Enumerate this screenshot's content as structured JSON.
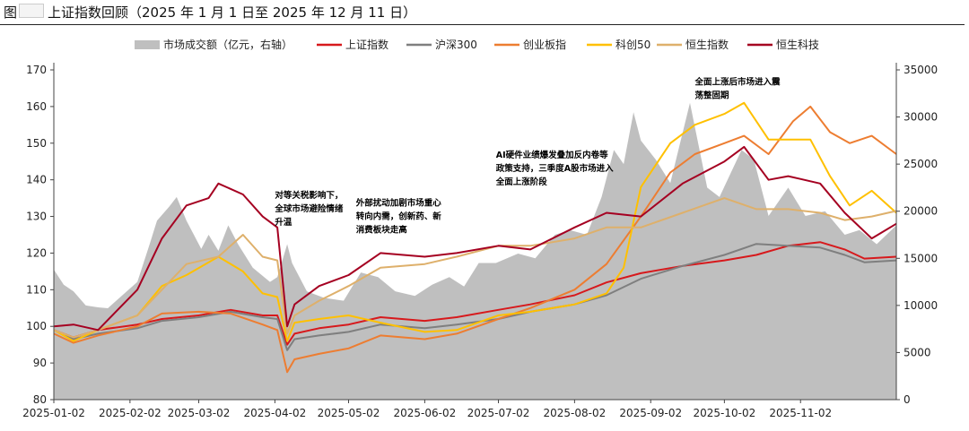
{
  "header": {
    "figure_prefix": "图",
    "title_text": "上证指数回顾（2025 年 1 月 1 日至 2025 年 12 月 11 日）"
  },
  "chart_data": {
    "type": "line",
    "title": "上证指数回顾（2025 年 1 月 1 日至 2025 年 12 月 11 日）",
    "xlabel": "",
    "ylabel": "",
    "x_ticks": [
      "2025-01-02",
      "2025-02-02",
      "2025-03-02",
      "2025-04-02",
      "2025-05-02",
      "2025-06-02",
      "2025-07-02",
      "2025-08-02",
      "2025-09-02",
      "2025-10-02",
      "2025-11-02"
    ],
    "x_range": [
      "2025-01-02",
      "2025-12-11"
    ],
    "ylim_left": [
      80,
      170
    ],
    "yticks_left": [
      80,
      90,
      100,
      110,
      120,
      130,
      140,
      150,
      160,
      170
    ],
    "ylim_right": [
      0,
      35000
    ],
    "yticks_right": [
      0,
      5000,
      10000,
      15000,
      20000,
      25000,
      30000,
      35000
    ],
    "legend_position": "top",
    "grid": false,
    "series": [
      {
        "name": "市场成交额（亿元，右轴）",
        "kind": "area",
        "axis": "right",
        "color": "#bfbfbf",
        "points": [
          [
            "2025-01-02",
            13800
          ],
          [
            "2025-01-06",
            12200
          ],
          [
            "2025-01-10",
            11500
          ],
          [
            "2025-01-15",
            10000
          ],
          [
            "2025-01-20",
            9800
          ],
          [
            "2025-01-24",
            9700
          ],
          [
            "2025-02-05",
            12500
          ],
          [
            "2025-02-10",
            16500
          ],
          [
            "2025-02-13",
            19000
          ],
          [
            "2025-02-18",
            20500
          ],
          [
            "2025-02-21",
            21500
          ],
          [
            "2025-02-25",
            19000
          ],
          [
            "2025-03-03",
            16000
          ],
          [
            "2025-03-06",
            17500
          ],
          [
            "2025-03-10",
            15800
          ],
          [
            "2025-03-14",
            18500
          ],
          [
            "2025-03-18",
            16500
          ],
          [
            "2025-03-24",
            14000
          ],
          [
            "2025-03-31",
            12500
          ],
          [
            "2025-04-03",
            13000
          ],
          [
            "2025-04-07",
            16500
          ],
          [
            "2025-04-09",
            14500
          ],
          [
            "2025-04-15",
            11500
          ],
          [
            "2025-04-22",
            10800
          ],
          [
            "2025-04-30",
            10500
          ],
          [
            "2025-05-07",
            13500
          ],
          [
            "2025-05-14",
            13000
          ],
          [
            "2025-05-21",
            11500
          ],
          [
            "2025-05-29",
            11000
          ],
          [
            "2025-06-05",
            12200
          ],
          [
            "2025-06-12",
            13000
          ],
          [
            "2025-06-18",
            12000
          ],
          [
            "2025-06-24",
            14500
          ],
          [
            "2025-07-01",
            14500
          ],
          [
            "2025-07-10",
            15500
          ],
          [
            "2025-07-17",
            15000
          ],
          [
            "2025-07-25",
            17500
          ],
          [
            "2025-07-31",
            18000
          ],
          [
            "2025-08-07",
            17500
          ],
          [
            "2025-08-13",
            21500
          ],
          [
            "2025-08-18",
            26500
          ],
          [
            "2025-08-22",
            25000
          ],
          [
            "2025-08-26",
            30500
          ],
          [
            "2025-08-29",
            27500
          ],
          [
            "2025-09-04",
            25500
          ],
          [
            "2025-09-10",
            23000
          ],
          [
            "2025-09-18",
            31500
          ],
          [
            "2025-09-25",
            22500
          ],
          [
            "2025-09-30",
            21500
          ],
          [
            "2025-10-09",
            26500
          ],
          [
            "2025-10-14",
            25500
          ],
          [
            "2025-10-20",
            19500
          ],
          [
            "2025-10-28",
            22500
          ],
          [
            "2025-11-04",
            19500
          ],
          [
            "2025-11-12",
            20000
          ],
          [
            "2025-11-20",
            17500
          ],
          [
            "2025-11-26",
            18000
          ],
          [
            "2025-12-03",
            16500
          ],
          [
            "2025-12-11",
            18500
          ]
        ]
      },
      {
        "name": "上证指数",
        "axis": "left",
        "color": "#d7191c",
        "points": [
          [
            "2025-01-02",
            99
          ],
          [
            "2025-01-10",
            97
          ],
          [
            "2025-01-20",
            99
          ],
          [
            "2025-02-05",
            100.5
          ],
          [
            "2025-02-15",
            102
          ],
          [
            "2025-03-02",
            103
          ],
          [
            "2025-03-15",
            104.5
          ],
          [
            "2025-03-28",
            103
          ],
          [
            "2025-04-03",
            103
          ],
          [
            "2025-04-07",
            95
          ],
          [
            "2025-04-10",
            98
          ],
          [
            "2025-04-20",
            99.5
          ],
          [
            "2025-05-02",
            100.5
          ],
          [
            "2025-05-15",
            102.5
          ],
          [
            "2025-06-02",
            101.5
          ],
          [
            "2025-06-15",
            102.5
          ],
          [
            "2025-07-02",
            104.5
          ],
          [
            "2025-07-15",
            106
          ],
          [
            "2025-08-02",
            108.5
          ],
          [
            "2025-08-15",
            112
          ],
          [
            "2025-08-29",
            114.5
          ],
          [
            "2025-09-15",
            116.5
          ],
          [
            "2025-10-02",
            118
          ],
          [
            "2025-10-15",
            119.5
          ],
          [
            "2025-10-28",
            122
          ],
          [
            "2025-11-10",
            123
          ],
          [
            "2025-11-20",
            121
          ],
          [
            "2025-11-28",
            118.5
          ],
          [
            "2025-12-11",
            119
          ]
        ]
      },
      {
        "name": "沪深300",
        "axis": "left",
        "color": "#7f7f7f",
        "points": [
          [
            "2025-01-02",
            99
          ],
          [
            "2025-01-10",
            96.5
          ],
          [
            "2025-01-20",
            98
          ],
          [
            "2025-02-05",
            99.5
          ],
          [
            "2025-02-15",
            101.5
          ],
          [
            "2025-03-02",
            102.5
          ],
          [
            "2025-03-15",
            104
          ],
          [
            "2025-03-28",
            102.5
          ],
          [
            "2025-04-03",
            102
          ],
          [
            "2025-04-07",
            93.5
          ],
          [
            "2025-04-10",
            96.5
          ],
          [
            "2025-04-20",
            97.5
          ],
          [
            "2025-05-02",
            98.5
          ],
          [
            "2025-05-15",
            100.5
          ],
          [
            "2025-06-02",
            99.5
          ],
          [
            "2025-06-15",
            100.5
          ],
          [
            "2025-07-02",
            102
          ],
          [
            "2025-07-15",
            104
          ],
          [
            "2025-08-02",
            106
          ],
          [
            "2025-08-15",
            108.5
          ],
          [
            "2025-08-29",
            113
          ],
          [
            "2025-09-15",
            116.5
          ],
          [
            "2025-10-02",
            119.5
          ],
          [
            "2025-10-15",
            122.5
          ],
          [
            "2025-10-28",
            122
          ],
          [
            "2025-11-10",
            121.5
          ],
          [
            "2025-11-20",
            119.5
          ],
          [
            "2025-11-28",
            117.5
          ],
          [
            "2025-12-11",
            118
          ]
        ]
      },
      {
        "name": "创业板指",
        "axis": "left",
        "color": "#ed7d31",
        "points": [
          [
            "2025-01-02",
            98
          ],
          [
            "2025-01-10",
            95.5
          ],
          [
            "2025-01-20",
            97.5
          ],
          [
            "2025-02-05",
            100
          ],
          [
            "2025-02-15",
            103.5
          ],
          [
            "2025-03-02",
            104
          ],
          [
            "2025-03-15",
            103.5
          ],
          [
            "2025-03-28",
            100.5
          ],
          [
            "2025-04-03",
            99
          ],
          [
            "2025-04-07",
            87.5
          ],
          [
            "2025-04-10",
            91
          ],
          [
            "2025-04-20",
            92.5
          ],
          [
            "2025-05-02",
            94
          ],
          [
            "2025-05-15",
            97.5
          ],
          [
            "2025-06-02",
            96.5
          ],
          [
            "2025-06-15",
            98
          ],
          [
            "2025-07-02",
            102
          ],
          [
            "2025-07-15",
            105
          ],
          [
            "2025-08-02",
            110
          ],
          [
            "2025-08-15",
            117
          ],
          [
            "2025-08-29",
            130
          ],
          [
            "2025-09-10",
            142
          ],
          [
            "2025-09-20",
            147
          ],
          [
            "2025-10-02",
            150
          ],
          [
            "2025-10-10",
            152
          ],
          [
            "2025-10-20",
            147
          ],
          [
            "2025-10-30",
            156
          ],
          [
            "2025-11-06",
            160
          ],
          [
            "2025-11-14",
            153
          ],
          [
            "2025-11-22",
            150
          ],
          [
            "2025-12-01",
            152
          ],
          [
            "2025-12-11",
            147
          ]
        ]
      },
      {
        "name": "科创50",
        "axis": "left",
        "color": "#ffc000",
        "points": [
          [
            "2025-01-02",
            99
          ],
          [
            "2025-01-10",
            96
          ],
          [
            "2025-01-20",
            99
          ],
          [
            "2025-02-05",
            103
          ],
          [
            "2025-02-15",
            111
          ],
          [
            "2025-02-25",
            114
          ],
          [
            "2025-03-10",
            119
          ],
          [
            "2025-03-20",
            115
          ],
          [
            "2025-03-28",
            109
          ],
          [
            "2025-04-03",
            108
          ],
          [
            "2025-04-07",
            96
          ],
          [
            "2025-04-10",
            101
          ],
          [
            "2025-04-20",
            102
          ],
          [
            "2025-05-02",
            103
          ],
          [
            "2025-05-15",
            101
          ],
          [
            "2025-06-02",
            98.5
          ],
          [
            "2025-06-15",
            99
          ],
          [
            "2025-07-02",
            103
          ],
          [
            "2025-07-15",
            104
          ],
          [
            "2025-08-02",
            106
          ],
          [
            "2025-08-15",
            109
          ],
          [
            "2025-08-22",
            116
          ],
          [
            "2025-08-29",
            138
          ],
          [
            "2025-09-10",
            150
          ],
          [
            "2025-09-20",
            155
          ],
          [
            "2025-10-02",
            158
          ],
          [
            "2025-10-10",
            161
          ],
          [
            "2025-10-20",
            151
          ],
          [
            "2025-10-30",
            151
          ],
          [
            "2025-11-06",
            151
          ],
          [
            "2025-11-14",
            141
          ],
          [
            "2025-11-22",
            133
          ],
          [
            "2025-12-01",
            137
          ],
          [
            "2025-12-11",
            131
          ]
        ]
      },
      {
        "name": "恒生指数",
        "axis": "left",
        "color": "#deb06b",
        "points": [
          [
            "2025-01-02",
            99
          ],
          [
            "2025-01-10",
            97
          ],
          [
            "2025-01-20",
            99
          ],
          [
            "2025-02-05",
            103
          ],
          [
            "2025-02-15",
            110
          ],
          [
            "2025-02-25",
            117
          ],
          [
            "2025-03-10",
            119
          ],
          [
            "2025-03-20",
            125
          ],
          [
            "2025-03-28",
            119
          ],
          [
            "2025-04-03",
            118
          ],
          [
            "2025-04-07",
            98
          ],
          [
            "2025-04-10",
            103
          ],
          [
            "2025-04-20",
            107
          ],
          [
            "2025-05-02",
            111
          ],
          [
            "2025-05-15",
            116
          ],
          [
            "2025-06-02",
            117
          ],
          [
            "2025-06-15",
            119
          ],
          [
            "2025-07-02",
            122
          ],
          [
            "2025-07-15",
            122
          ],
          [
            "2025-08-02",
            124
          ],
          [
            "2025-08-15",
            127
          ],
          [
            "2025-08-29",
            127
          ],
          [
            "2025-09-15",
            131
          ],
          [
            "2025-10-02",
            135
          ],
          [
            "2025-10-15",
            132
          ],
          [
            "2025-10-28",
            132
          ],
          [
            "2025-11-10",
            131
          ],
          [
            "2025-11-20",
            129
          ],
          [
            "2025-12-01",
            130
          ],
          [
            "2025-12-11",
            131.5
          ]
        ]
      },
      {
        "name": "恒生科技",
        "axis": "left",
        "color": "#a50021",
        "points": [
          [
            "2025-01-02",
            100
          ],
          [
            "2025-01-10",
            100.5
          ],
          [
            "2025-01-20",
            99
          ],
          [
            "2025-02-05",
            110
          ],
          [
            "2025-02-15",
            124
          ],
          [
            "2025-02-25",
            133
          ],
          [
            "2025-03-06",
            135
          ],
          [
            "2025-03-10",
            139
          ],
          [
            "2025-03-20",
            136
          ],
          [
            "2025-03-28",
            130
          ],
          [
            "2025-04-03",
            127
          ],
          [
            "2025-04-07",
            100
          ],
          [
            "2025-04-10",
            106
          ],
          [
            "2025-04-20",
            111
          ],
          [
            "2025-05-02",
            114
          ],
          [
            "2025-05-15",
            120
          ],
          [
            "2025-06-02",
            119
          ],
          [
            "2025-06-15",
            120
          ],
          [
            "2025-07-02",
            122
          ],
          [
            "2025-07-15",
            121
          ],
          [
            "2025-08-02",
            127
          ],
          [
            "2025-08-15",
            131
          ],
          [
            "2025-08-29",
            130
          ],
          [
            "2025-09-15",
            139
          ],
          [
            "2025-10-02",
            145
          ],
          [
            "2025-10-10",
            149
          ],
          [
            "2025-10-20",
            140
          ],
          [
            "2025-10-28",
            141
          ],
          [
            "2025-11-10",
            139
          ],
          [
            "2025-11-20",
            131
          ],
          [
            "2025-12-01",
            124
          ],
          [
            "2025-12-11",
            128
          ]
        ]
      }
    ],
    "annotations": [
      {
        "lines": [
          "对等关税影响下，",
          "全球市场避险情绪",
          "升温"
        ],
        "at": [
          "2025-04-02",
          135
        ]
      },
      {
        "lines": [
          "外部扰动加剧市场重心",
          "转向内需，创新药、新",
          "消费板块走高"
        ],
        "at": [
          "2025-05-05",
          133
        ]
      },
      {
        "lines": [
          "AI硬件业绩爆发叠加反内卷等",
          "政策支持，三季度A股市场进入",
          "全面上涨阶段"
        ],
        "at": [
          "2025-07-01",
          146
        ]
      },
      {
        "lines": [
          "全面上涨后市场进入震",
          "荡整固期"
        ],
        "at": [
          "2025-09-20",
          166
        ]
      }
    ]
  }
}
